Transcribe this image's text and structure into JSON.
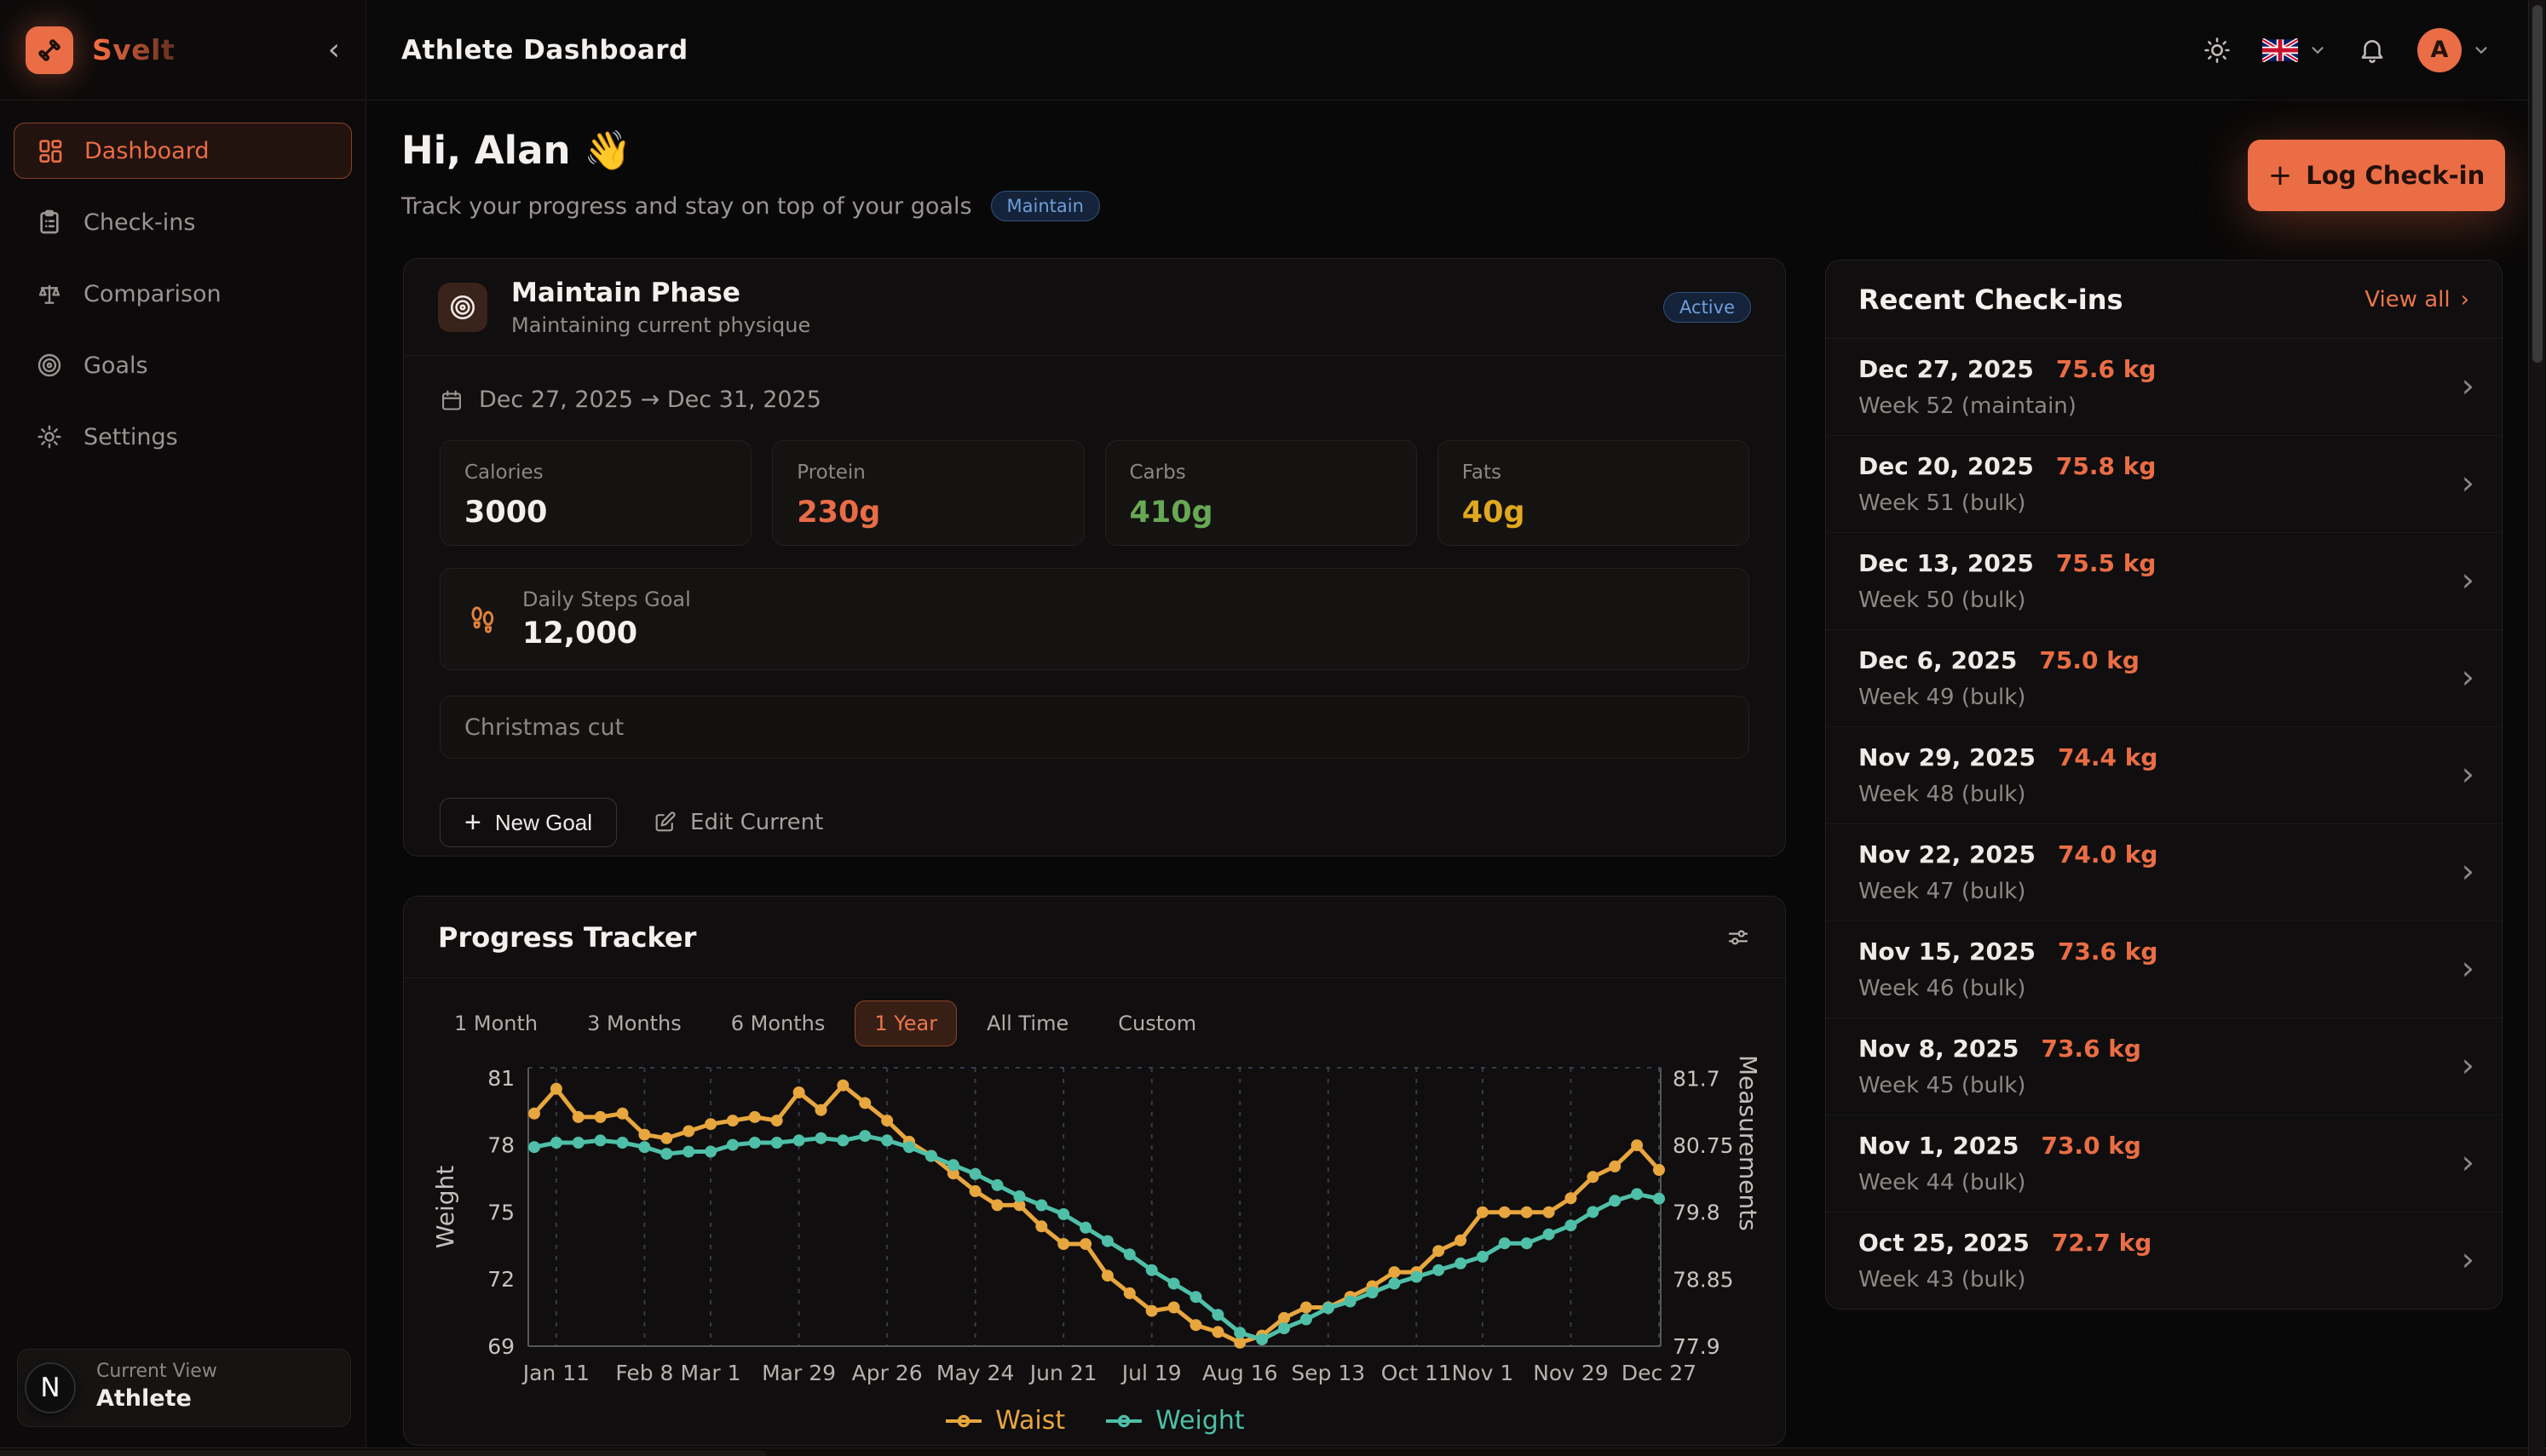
{
  "app": {
    "name": "Svelt"
  },
  "header": {
    "title": "Athlete Dashboard",
    "avatar_initial": "A"
  },
  "sidebar": {
    "items": [
      {
        "label": "Dashboard"
      },
      {
        "label": "Check-ins"
      },
      {
        "label": "Comparison"
      },
      {
        "label": "Goals"
      },
      {
        "label": "Settings"
      }
    ],
    "active": "Dashboard",
    "current_view": {
      "label": "Current View",
      "value": "Athlete",
      "badge": "N"
    }
  },
  "greeting": {
    "title": "Hi, Alan",
    "wave": "👋",
    "subtitle": "Track your progress and stay on top of your goals",
    "badge": "Maintain",
    "log_button": "Log Check-in"
  },
  "phase": {
    "title": "Maintain Phase",
    "subtitle": "Maintaining current physique",
    "status": "Active",
    "date_range": "Dec 27, 2025 → Dec 31, 2025",
    "macros": [
      {
        "label": "Calories",
        "value": "3000",
        "color": "#f2efec"
      },
      {
        "label": "Protein",
        "value": "230g",
        "color": "#e86c45"
      },
      {
        "label": "Carbs",
        "value": "410g",
        "color": "#67a855"
      },
      {
        "label": "Fats",
        "value": "40g",
        "color": "#e0a81e"
      }
    ],
    "steps": {
      "label": "Daily Steps Goal",
      "value": "12,000"
    },
    "note": "Christmas cut",
    "new_goal_label": "New Goal",
    "edit_current_label": "Edit Current"
  },
  "tracker": {
    "title": "Progress Tracker",
    "ranges": [
      "1 Month",
      "3 Months",
      "6 Months",
      "1 Year",
      "All Time",
      "Custom"
    ],
    "active_range": "1 Year"
  },
  "chart_data": {
    "type": "line",
    "title": "Progress Tracker",
    "x": [
      "Jan 4",
      "Jan 11",
      "Jan 18",
      "Jan 25",
      "Feb 1",
      "Feb 8",
      "Feb 15",
      "Feb 22",
      "Mar 1",
      "Mar 8",
      "Mar 15",
      "Mar 22",
      "Mar 29",
      "Apr 5",
      "Apr 12",
      "Apr 19",
      "Apr 26",
      "May 3",
      "May 10",
      "May 17",
      "May 24",
      "May 31",
      "Jun 7",
      "Jun 14",
      "Jun 21",
      "Jun 28",
      "Jul 5",
      "Jul 12",
      "Jul 19",
      "Jul 26",
      "Aug 2",
      "Aug 9",
      "Aug 16",
      "Aug 23",
      "Aug 30",
      "Sep 6",
      "Sep 13",
      "Sep 20",
      "Sep 27",
      "Oct 4",
      "Oct 11",
      "Oct 18",
      "Oct 25",
      "Nov 1",
      "Nov 8",
      "Nov 15",
      "Nov 22",
      "Nov 29",
      "Dec 6",
      "Dec 13",
      "Dec 20",
      "Dec 27"
    ],
    "x_tick_labels": [
      "Jan 11",
      "Feb 8",
      "Mar 1",
      "Mar 29",
      "Apr 26",
      "May 24",
      "Jun 21",
      "Jul 19",
      "Aug 16",
      "Sep 13",
      "Oct 11",
      "Nov 1",
      "Nov 29",
      "Dec 27"
    ],
    "x_tick_indices": [
      1,
      5,
      8,
      12,
      16,
      20,
      24,
      28,
      32,
      36,
      40,
      43,
      47,
      51
    ],
    "series": [
      {
        "name": "Waist",
        "axis": "right",
        "color": "#E7A63E",
        "values": [
          81.2,
          81.55,
          81.15,
          81.15,
          81.2,
          80.9,
          80.85,
          80.95,
          81.05,
          81.1,
          81.15,
          81.1,
          81.5,
          81.25,
          81.6,
          81.35,
          81.1,
          80.8,
          80.6,
          80.35,
          80.1,
          79.9,
          79.9,
          79.6,
          79.35,
          79.35,
          78.9,
          78.65,
          78.4,
          78.45,
          78.2,
          78.1,
          77.95,
          78.05,
          78.3,
          78.45,
          78.45,
          78.6,
          78.75,
          78.95,
          78.95,
          79.25,
          79.4,
          79.8,
          79.8,
          79.8,
          79.8,
          80.0,
          80.3,
          80.45,
          80.75,
          80.4
        ]
      },
      {
        "name": "Weight",
        "axis": "left",
        "color": "#4FBFA8",
        "values": [
          77.9,
          78.1,
          78.1,
          78.2,
          78.1,
          77.9,
          77.6,
          77.7,
          77.7,
          78.0,
          78.1,
          78.1,
          78.2,
          78.3,
          78.2,
          78.4,
          78.2,
          77.9,
          77.5,
          77.1,
          76.7,
          76.2,
          75.7,
          75.3,
          74.9,
          74.3,
          73.7,
          73.1,
          72.4,
          71.8,
          71.2,
          70.4,
          69.6,
          69.3,
          69.8,
          70.2,
          70.7,
          71.0,
          71.4,
          71.8,
          72.1,
          72.4,
          72.7,
          73.0,
          73.6,
          73.6,
          74.0,
          74.4,
          75.0,
          75.5,
          75.8,
          75.6
        ]
      }
    ],
    "left_axis": {
      "label": "Weight",
      "ticks": [
        69,
        72,
        75,
        78,
        81
      ],
      "min": 69,
      "max": 81.45
    },
    "right_axis": {
      "label": "Measurements",
      "ticks": [
        77.9,
        78.85,
        79.8,
        80.75,
        81.7
      ],
      "min": 77.9,
      "max": 81.85
    },
    "grid": "dashed-vertical",
    "legend_position": "bottom"
  },
  "checkins": {
    "title": "Recent Check-ins",
    "view_all": "View all",
    "items": [
      {
        "date": "Dec 27, 2025",
        "weight": "75.6 kg",
        "note": "Week 52 (maintain)"
      },
      {
        "date": "Dec 20, 2025",
        "weight": "75.8 kg",
        "note": "Week 51 (bulk)"
      },
      {
        "date": "Dec 13, 2025",
        "weight": "75.5 kg",
        "note": "Week 50 (bulk)"
      },
      {
        "date": "Dec 6, 2025",
        "weight": "75.0 kg",
        "note": "Week 49 (bulk)"
      },
      {
        "date": "Nov 29, 2025",
        "weight": "74.4 kg",
        "note": "Week 48 (bulk)"
      },
      {
        "date": "Nov 22, 2025",
        "weight": "74.0 kg",
        "note": "Week 47 (bulk)"
      },
      {
        "date": "Nov 15, 2025",
        "weight": "73.6 kg",
        "note": "Week 46 (bulk)"
      },
      {
        "date": "Nov 8, 2025",
        "weight": "73.6 kg",
        "note": "Week 45 (bulk)"
      },
      {
        "date": "Nov 1, 2025",
        "weight": "73.0 kg",
        "note": "Week 44 (bulk)"
      },
      {
        "date": "Oct 25, 2025",
        "weight": "72.7 kg",
        "note": "Week 43 (bulk)"
      }
    ]
  },
  "colors": {
    "accent": "#ea6d45",
    "badge_blue_text": "#6f9ed9",
    "chart_waist": "#E7A63E",
    "chart_weight": "#4FBFA8",
    "protein": "#e86c45",
    "carbs": "#67a855",
    "fats": "#e0a81e"
  }
}
